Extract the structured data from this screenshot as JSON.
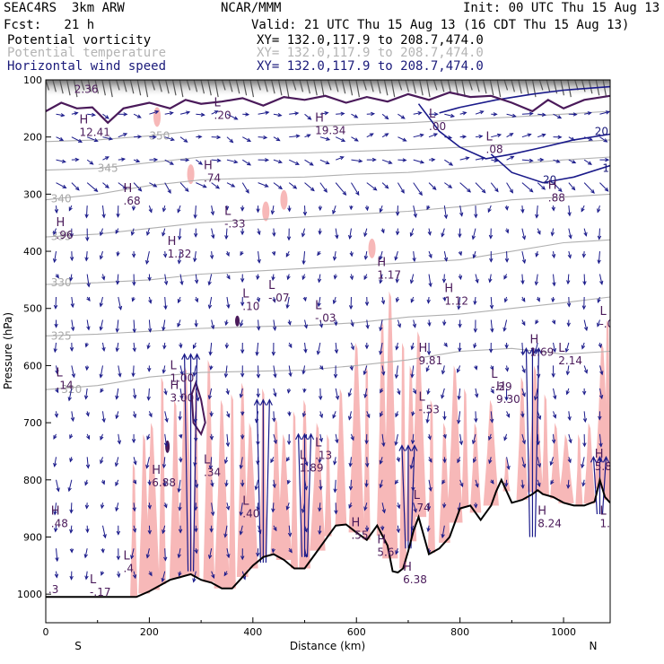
{
  "header": {
    "model": "SEAC4RS  3km ARW",
    "center": "NCAR/MMM",
    "init": "Init: 00 UTC Thu 15 Aug 13",
    "fcst": "Fcst:   21 h",
    "valid": "Valid: 21 UTC Thu 15 Aug 13 (16 CDT Thu 15 Aug 13)",
    "fields": [
      {
        "name": "Potential vorticity",
        "xy": "XY= 132.0,117.9 to 208.7,474.0",
        "color": "#000000"
      },
      {
        "name": "Potential temperature",
        "xy": "XY= 132.0,117.9 to 208.7,474.0",
        "color": "#b4b4b4"
      },
      {
        "name": "Horizontal wind speed",
        "xy": "XY= 132.0,117.9 to 208.7,474.0",
        "color": "#1a1a7a"
      }
    ]
  },
  "colors": {
    "pv_fill": "#f7b8b8",
    "pv_contour": "#4a1a5a",
    "theta": "#b0b0b0",
    "wind": "#1a1a8a",
    "terrain": "#000000",
    "stratosphere": "#909090"
  },
  "chart_data": {
    "type": "cross-section",
    "xlabel": "Distance (km)",
    "ylabel": "Pressure (hPa)",
    "xlim": [
      0,
      1090
    ],
    "ylim": [
      1050,
      100
    ],
    "x_ticks": [
      0,
      200,
      400,
      600,
      800,
      1000
    ],
    "y_ticks": [
      100,
      200,
      300,
      400,
      500,
      600,
      700,
      800,
      900,
      1000
    ],
    "x_end_labels": {
      "left": "S",
      "right": "N"
    },
    "terrain": [
      [
        0,
        1005
      ],
      [
        175,
        1005
      ],
      [
        200,
        995
      ],
      [
        220,
        985
      ],
      [
        240,
        975
      ],
      [
        260,
        970
      ],
      [
        280,
        965
      ],
      [
        300,
        975
      ],
      [
        320,
        980
      ],
      [
        340,
        990
      ],
      [
        360,
        990
      ],
      [
        380,
        970
      ],
      [
        400,
        950
      ],
      [
        420,
        935
      ],
      [
        440,
        930
      ],
      [
        460,
        940
      ],
      [
        480,
        955
      ],
      [
        500,
        955
      ],
      [
        520,
        930
      ],
      [
        540,
        905
      ],
      [
        560,
        880
      ],
      [
        580,
        878
      ],
      [
        600,
        892
      ],
      [
        620,
        905
      ],
      [
        640,
        880
      ],
      [
        660,
        915
      ],
      [
        670,
        960
      ],
      [
        680,
        962
      ],
      [
        690,
        955
      ],
      [
        700,
        925
      ],
      [
        710,
        890
      ],
      [
        720,
        865
      ],
      [
        740,
        930
      ],
      [
        760,
        920
      ],
      [
        780,
        900
      ],
      [
        800,
        850
      ],
      [
        820,
        845
      ],
      [
        840,
        870
      ],
      [
        860,
        845
      ],
      [
        870,
        820
      ],
      [
        880,
        800
      ],
      [
        900,
        840
      ],
      [
        920,
        835
      ],
      [
        940,
        825
      ],
      [
        950,
        818
      ],
      [
        960,
        825
      ],
      [
        980,
        830
      ],
      [
        1000,
        840
      ],
      [
        1020,
        845
      ],
      [
        1040,
        845
      ],
      [
        1060,
        838
      ],
      [
        1070,
        800
      ],
      [
        1080,
        830
      ],
      [
        1090,
        840
      ]
    ],
    "theta_contours": [
      {
        "label": "320",
        "points": [
          [
            0,
            642
          ],
          [
            100,
            635
          ],
          [
            200,
            620
          ],
          [
            300,
            612
          ],
          [
            400,
            610
          ],
          [
            500,
            608
          ],
          [
            600,
            600
          ],
          [
            700,
            590
          ],
          [
            800,
            575
          ],
          [
            900,
            570
          ],
          [
            1000,
            580
          ],
          [
            1090,
            575
          ]
        ],
        "label_at": [
          30,
          642
        ]
      },
      {
        "label": "325",
        "points": [
          [
            0,
            548
          ],
          [
            100,
            545
          ],
          [
            200,
            540
          ],
          [
            300,
            535
          ],
          [
            400,
            532
          ],
          [
            500,
            530
          ],
          [
            600,
            525
          ],
          [
            700,
            515
          ],
          [
            800,
            510
          ],
          [
            900,
            500
          ],
          [
            1000,
            490
          ],
          [
            1090,
            480
          ]
        ],
        "label_at": [
          10,
          548
        ]
      },
      {
        "label": "330",
        "points": [
          [
            0,
            458
          ],
          [
            100,
            455
          ],
          [
            200,
            450
          ],
          [
            300,
            440
          ],
          [
            400,
            435
          ],
          [
            500,
            430
          ],
          [
            600,
            425
          ],
          [
            700,
            420
          ],
          [
            800,
            415
          ],
          [
            900,
            400
          ],
          [
            1000,
            385
          ],
          [
            1090,
            380
          ]
        ],
        "label_at": [
          10,
          455
        ]
      },
      {
        "label": "335",
        "points": [
          [
            0,
            375
          ],
          [
            100,
            370
          ],
          [
            200,
            360
          ],
          [
            300,
            350
          ],
          [
            400,
            345
          ],
          [
            500,
            340
          ],
          [
            600,
            335
          ],
          [
            700,
            330
          ],
          [
            800,
            322
          ],
          [
            900,
            310
          ],
          [
            1000,
            305
          ],
          [
            1090,
            300
          ]
        ],
        "label_at": [
          10,
          374
        ]
      },
      {
        "label": "340",
        "points": [
          [
            0,
            310
          ],
          [
            100,
            300
          ],
          [
            200,
            285
          ],
          [
            300,
            275
          ],
          [
            400,
            272
          ],
          [
            500,
            270
          ],
          [
            600,
            265
          ],
          [
            700,
            262
          ],
          [
            800,
            255
          ],
          [
            900,
            248
          ],
          [
            1000,
            240
          ],
          [
            1090,
            235
          ]
        ],
        "label_at": [
          10,
          308
        ]
      },
      {
        "label": "345",
        "points": [
          [
            0,
            258
          ],
          [
            100,
            255
          ],
          [
            200,
            245
          ],
          [
            300,
            235
          ],
          [
            400,
            230
          ],
          [
            500,
            228
          ],
          [
            600,
            225
          ],
          [
            700,
            222
          ],
          [
            800,
            218
          ],
          [
            900,
            212
          ],
          [
            1000,
            210
          ],
          [
            1090,
            205
          ]
        ],
        "label_at": [
          100,
          255
        ]
      },
      {
        "label": "350",
        "points": [
          [
            0,
            208
          ],
          [
            100,
            205
          ],
          [
            200,
            198
          ],
          [
            300,
            188
          ],
          [
            400,
            185
          ],
          [
            500,
            182
          ],
          [
            600,
            178
          ],
          [
            700,
            175
          ],
          [
            800,
            170
          ],
          [
            900,
            165
          ],
          [
            1000,
            160
          ],
          [
            1090,
            155
          ]
        ],
        "label_at": [
          200,
          198
        ]
      }
    ],
    "pv_labels": [
      {
        "kind": "H",
        "value": "2.36",
        "x": 55,
        "p": 120
      },
      {
        "kind": "H",
        "value": "12.41",
        "x": 65,
        "p": 195
      },
      {
        "kind": "L",
        "value": ".20",
        "x": 325,
        "p": 165
      },
      {
        "kind": "H",
        "value": "19.34",
        "x": 520,
        "p": 192
      },
      {
        "kind": "L",
        "value": ".00",
        "x": 740,
        "p": 185
      },
      {
        "kind": "L",
        "value": ".08",
        "x": 850,
        "p": 225
      },
      {
        "kind": "H",
        "value": ".74",
        "x": 305,
        "p": 275
      },
      {
        "kind": "H",
        "value": ".68",
        "x": 150,
        "p": 315
      },
      {
        "kind": "L",
        "value": "-.33",
        "x": 345,
        "p": 355
      },
      {
        "kind": "H",
        "value": ".96",
        "x": 20,
        "p": 375
      },
      {
        "kind": "H",
        "value": ".88",
        "x": 970,
        "p": 310
      },
      {
        "kind": "H",
        "value": "1.32",
        "x": 235,
        "p": 408
      },
      {
        "kind": "H",
        "value": "1.17",
        "x": 640,
        "p": 445
      },
      {
        "kind": "L",
        "value": "-.07",
        "x": 430,
        "p": 485
      },
      {
        "kind": "L",
        "value": ".10",
        "x": 380,
        "p": 500
      },
      {
        "kind": "H",
        "value": "1.12",
        "x": 770,
        "p": 490
      },
      {
        "kind": "L",
        "value": "-.03",
        "x": 520,
        "p": 520
      },
      {
        "kind": "L",
        "value": "-.0",
        "x": 1070,
        "p": 530
      },
      {
        "kind": "H",
        "value": "9.81",
        "x": 720,
        "p": 595
      },
      {
        "kind": "H",
        "value": "1.69",
        "x": 935,
        "p": 580
      },
      {
        "kind": "L",
        "value": "2.14",
        "x": 990,
        "p": 595
      },
      {
        "kind": "L",
        "value": "1.00",
        "x": 240,
        "p": 625
      },
      {
        "kind": "L",
        "value": ".14",
        "x": 20,
        "p": 638
      },
      {
        "kind": "L",
        "value": "-.29",
        "x": 860,
        "p": 640
      },
      {
        "kind": "H",
        "value": "3.00",
        "x": 240,
        "p": 660
      },
      {
        "kind": "L",
        "value": "-.53",
        "x": 720,
        "p": 680
      },
      {
        "kind": "H",
        "value": "9.30",
        "x": 870,
        "p": 662
      },
      {
        "kind": "L",
        "value": ".13",
        "x": 520,
        "p": 760
      },
      {
        "kind": "L",
        "value": "1.89",
        "x": 490,
        "p": 782
      },
      {
        "kind": "L",
        "value": ".34",
        "x": 305,
        "p": 790
      },
      {
        "kind": "H",
        "value": "6.88",
        "x": 205,
        "p": 808
      },
      {
        "kind": "H",
        "value": "5.84",
        "x": 1060,
        "p": 780
      },
      {
        "kind": "L",
        "value": ".74",
        "x": 710,
        "p": 852
      },
      {
        "kind": "H",
        "value": ".48",
        "x": 10,
        "p": 880
      },
      {
        "kind": "L",
        "value": "1.0",
        "x": 1070,
        "p": 880
      },
      {
        "kind": "L",
        "value": ".40",
        "x": 380,
        "p": 862
      },
      {
        "kind": "H",
        "value": "8.24",
        "x": 950,
        "p": 880
      },
      {
        "kind": "H",
        "value": ".55",
        "x": 590,
        "p": 900
      },
      {
        "kind": "L",
        "value": ".4",
        "x": 150,
        "p": 958
      },
      {
        "kind": "H",
        "value": "5.6",
        "x": 640,
        "p": 930
      },
      {
        "kind": "H",
        "value": "6.38",
        "x": 690,
        "p": 978
      },
      {
        "kind": "L",
        "value": "-.17",
        "x": 85,
        "p": 1000
      },
      {
        "kind": "",
        "value": ".3",
        "x": 5,
        "p": 995
      }
    ],
    "wind_speed_labels": [
      {
        "value": "20",
        "x": 960,
        "p": 275
      },
      {
        "value": "20",
        "x": 1060,
        "p": 190
      },
      {
        "value": "15",
        "x": 1075,
        "p": 255
      }
    ]
  }
}
